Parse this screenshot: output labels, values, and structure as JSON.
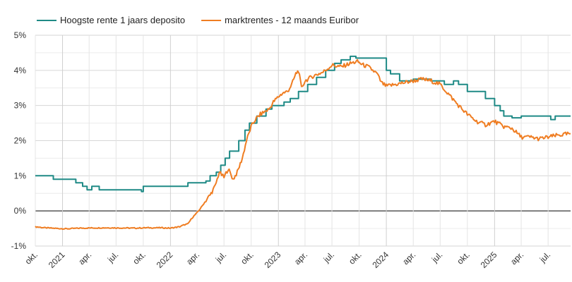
{
  "chart_data": {
    "type": "line",
    "title": "",
    "xlabel": "",
    "ylabel": "",
    "xlim": [
      "2020-10-01",
      "2025-09-15"
    ],
    "ylim": [
      -1,
      5
    ],
    "y_ticks": [
      -1,
      0,
      1,
      2,
      3,
      4,
      5
    ],
    "y_tick_labels": [
      "-1%",
      "0%",
      "1%",
      "2%",
      "3%",
      "4%",
      "5%"
    ],
    "x_ticks": [
      "2020-10-01",
      "2021-01-01",
      "2021-04-01",
      "2021-07-01",
      "2021-10-01",
      "2022-01-01",
      "2022-04-01",
      "2022-07-01",
      "2022-10-01",
      "2023-01-01",
      "2023-04-01",
      "2023-07-01",
      "2023-10-01",
      "2024-01-01",
      "2024-04-01",
      "2024-07-01",
      "2024-10-01",
      "2025-01-01",
      "2025-04-01",
      "2025-07-01"
    ],
    "x_tick_labels": [
      "okt.",
      "2021",
      "apr.",
      "jul.",
      "okt.",
      "2022",
      "apr.",
      "jul.",
      "okt.",
      "2023",
      "apr.",
      "jul.",
      "okt.",
      "2024",
      "apr.",
      "jul.",
      "okt.",
      "2025",
      "apr.",
      "jul."
    ],
    "grid": true,
    "legend": "top-left",
    "zero_line": true,
    "series": [
      {
        "name": "Hoogste rente 1 jaars deposito",
        "color": "#1f8a86",
        "style": "step",
        "points": [
          [
            "2020-10-01",
            1.0
          ],
          [
            "2020-12-01",
            0.9
          ],
          [
            "2021-02-15",
            0.8
          ],
          [
            "2021-03-10",
            0.7
          ],
          [
            "2021-03-25",
            0.6
          ],
          [
            "2021-04-10",
            0.7
          ],
          [
            "2021-05-05",
            0.6
          ],
          [
            "2021-09-25",
            0.55
          ],
          [
            "2021-10-01",
            0.7
          ],
          [
            "2022-03-01",
            0.8
          ],
          [
            "2022-05-01",
            0.85
          ],
          [
            "2022-05-15",
            1.0
          ],
          [
            "2022-06-05",
            1.1
          ],
          [
            "2022-06-20",
            1.3
          ],
          [
            "2022-07-05",
            1.5
          ],
          [
            "2022-07-20",
            1.7
          ],
          [
            "2022-08-20",
            2.0
          ],
          [
            "2022-09-10",
            2.3
          ],
          [
            "2022-09-25",
            2.5
          ],
          [
            "2022-10-20",
            2.7
          ],
          [
            "2022-11-20",
            2.9
          ],
          [
            "2022-12-10",
            3.0
          ],
          [
            "2023-01-20",
            3.1
          ],
          [
            "2023-02-10",
            3.2
          ],
          [
            "2023-03-10",
            3.4
          ],
          [
            "2023-04-10",
            3.6
          ],
          [
            "2023-05-10",
            3.8
          ],
          [
            "2023-06-10",
            4.0
          ],
          [
            "2023-07-10",
            4.2
          ],
          [
            "2023-08-01",
            4.3
          ],
          [
            "2023-09-01",
            4.4
          ],
          [
            "2023-09-20",
            4.35
          ],
          [
            "2024-01-01",
            4.0
          ],
          [
            "2024-01-15",
            3.9
          ],
          [
            "2024-02-15",
            3.7
          ],
          [
            "2024-04-01",
            3.75
          ],
          [
            "2024-06-01",
            3.7
          ],
          [
            "2024-07-15",
            3.6
          ],
          [
            "2024-08-15",
            3.7
          ],
          [
            "2024-09-01",
            3.6
          ],
          [
            "2024-10-01",
            3.4
          ],
          [
            "2024-11-01",
            3.4
          ],
          [
            "2024-12-01",
            3.2
          ],
          [
            "2025-01-01",
            3.0
          ],
          [
            "2025-01-20",
            2.85
          ],
          [
            "2025-02-01",
            2.7
          ],
          [
            "2025-03-01",
            2.65
          ],
          [
            "2025-04-01",
            2.7
          ],
          [
            "2025-05-01",
            2.7
          ],
          [
            "2025-06-01",
            2.7
          ],
          [
            "2025-07-10",
            2.6
          ],
          [
            "2025-07-25",
            2.7
          ],
          [
            "2025-09-15",
            2.7
          ]
        ]
      },
      {
        "name": "marktrentes - 12 maands Euribor",
        "color": "#ef7d22",
        "style": "line",
        "points": [
          [
            "2020-10-01",
            -0.45
          ],
          [
            "2020-11-01",
            -0.48
          ],
          [
            "2020-12-15",
            -0.5
          ],
          [
            "2021-01-15",
            -0.51
          ],
          [
            "2021-03-01",
            -0.49
          ],
          [
            "2021-06-01",
            -0.48
          ],
          [
            "2021-09-01",
            -0.49
          ],
          [
            "2021-10-15",
            -0.48
          ],
          [
            "2021-12-01",
            -0.48
          ],
          [
            "2022-01-01",
            -0.49
          ],
          [
            "2022-02-01",
            -0.45
          ],
          [
            "2022-02-15",
            -0.4
          ],
          [
            "2022-03-01",
            -0.37
          ],
          [
            "2022-03-15",
            -0.2
          ],
          [
            "2022-04-01",
            -0.05
          ],
          [
            "2022-04-15",
            0.1
          ],
          [
            "2022-05-01",
            0.3
          ],
          [
            "2022-05-15",
            0.45
          ],
          [
            "2022-06-01",
            0.7
          ],
          [
            "2022-06-15",
            1.1
          ],
          [
            "2022-07-01",
            0.95
          ],
          [
            "2022-07-15",
            1.2
          ],
          [
            "2022-08-01",
            0.9
          ],
          [
            "2022-08-15",
            1.1
          ],
          [
            "2022-09-01",
            1.5
          ],
          [
            "2022-09-15",
            2.0
          ],
          [
            "2022-10-01",
            2.4
          ],
          [
            "2022-10-15",
            2.6
          ],
          [
            "2022-11-01",
            2.75
          ],
          [
            "2022-12-01",
            2.9
          ],
          [
            "2022-12-15",
            3.1
          ],
          [
            "2023-01-01",
            3.25
          ],
          [
            "2023-01-15",
            3.35
          ],
          [
            "2023-02-01",
            3.4
          ],
          [
            "2023-02-15",
            3.6
          ],
          [
            "2023-03-01",
            3.9
          ],
          [
            "2023-03-10",
            4.0
          ],
          [
            "2023-03-20",
            3.5
          ],
          [
            "2023-04-01",
            3.7
          ],
          [
            "2023-05-01",
            3.85
          ],
          [
            "2023-06-01",
            3.95
          ],
          [
            "2023-07-01",
            4.15
          ],
          [
            "2023-08-01",
            4.1
          ],
          [
            "2023-09-01",
            4.2
          ],
          [
            "2023-09-25",
            4.25
          ],
          [
            "2023-10-15",
            4.15
          ],
          [
            "2023-11-01",
            4.1
          ],
          [
            "2023-12-01",
            3.9
          ],
          [
            "2023-12-15",
            3.65
          ],
          [
            "2024-01-01",
            3.55
          ],
          [
            "2024-02-01",
            3.6
          ],
          [
            "2024-03-01",
            3.65
          ],
          [
            "2024-04-01",
            3.7
          ],
          [
            "2024-05-01",
            3.75
          ],
          [
            "2024-06-01",
            3.7
          ],
          [
            "2024-07-01",
            3.6
          ],
          [
            "2024-08-01",
            3.3
          ],
          [
            "2024-09-01",
            3.0
          ],
          [
            "2024-10-01",
            2.75
          ],
          [
            "2024-11-01",
            2.55
          ],
          [
            "2024-12-01",
            2.45
          ],
          [
            "2025-01-01",
            2.55
          ],
          [
            "2025-02-01",
            2.4
          ],
          [
            "2025-03-01",
            2.35
          ],
          [
            "2025-04-01",
            2.1
          ],
          [
            "2025-05-01",
            2.1
          ],
          [
            "2025-06-01",
            2.05
          ],
          [
            "2025-07-01",
            2.1
          ],
          [
            "2025-08-01",
            2.15
          ],
          [
            "2025-09-15",
            2.2
          ]
        ]
      }
    ]
  }
}
